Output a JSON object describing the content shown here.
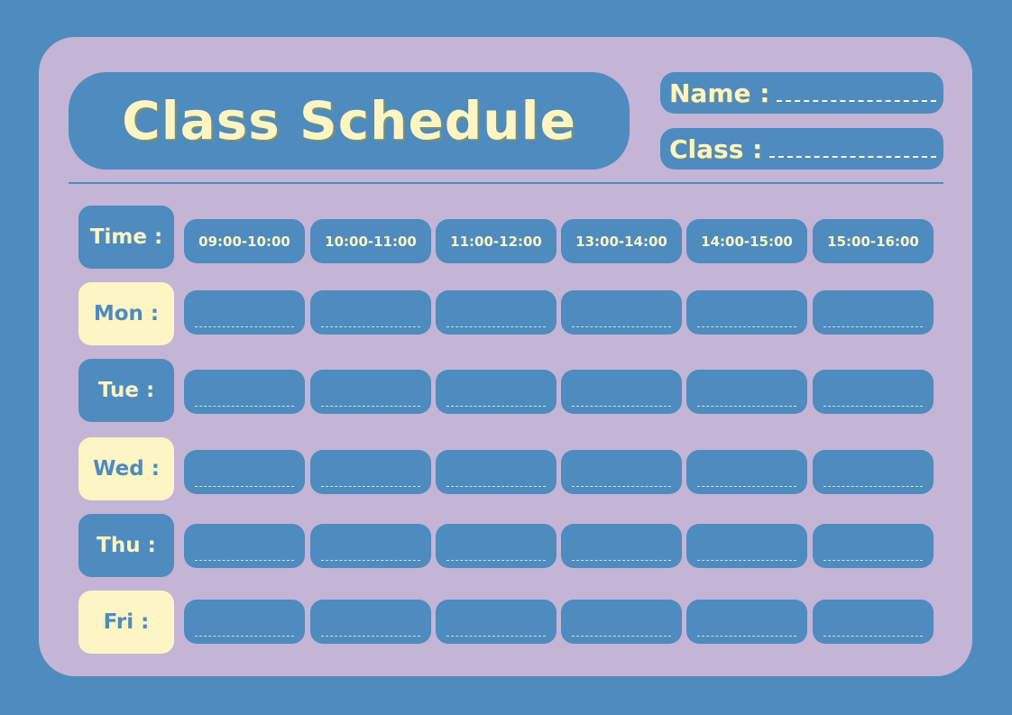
{
  "title": "Class Schedule",
  "fields": {
    "name_label": "Name :",
    "class_label": "Class :"
  },
  "time_label": "Time :",
  "time_slots": [
    "09:00-10:00",
    "10:00-11:00",
    "11:00-12:00",
    "13:00-14:00",
    "14:00-15:00",
    "15:00-16:00"
  ],
  "days": [
    {
      "label": "Mon :",
      "style": "yellow"
    },
    {
      "label": "Tue :",
      "style": "blue"
    },
    {
      "label": "Wed :",
      "style": "yellow"
    },
    {
      "label": "Thu :",
      "style": "blue"
    },
    {
      "label": "Fri :",
      "style": "yellow"
    }
  ],
  "colors": {
    "background": "#4e8bbf",
    "card": "#c4b4d6",
    "accent_yellow": "#fdf5c4",
    "blue": "#4e8bbf"
  }
}
